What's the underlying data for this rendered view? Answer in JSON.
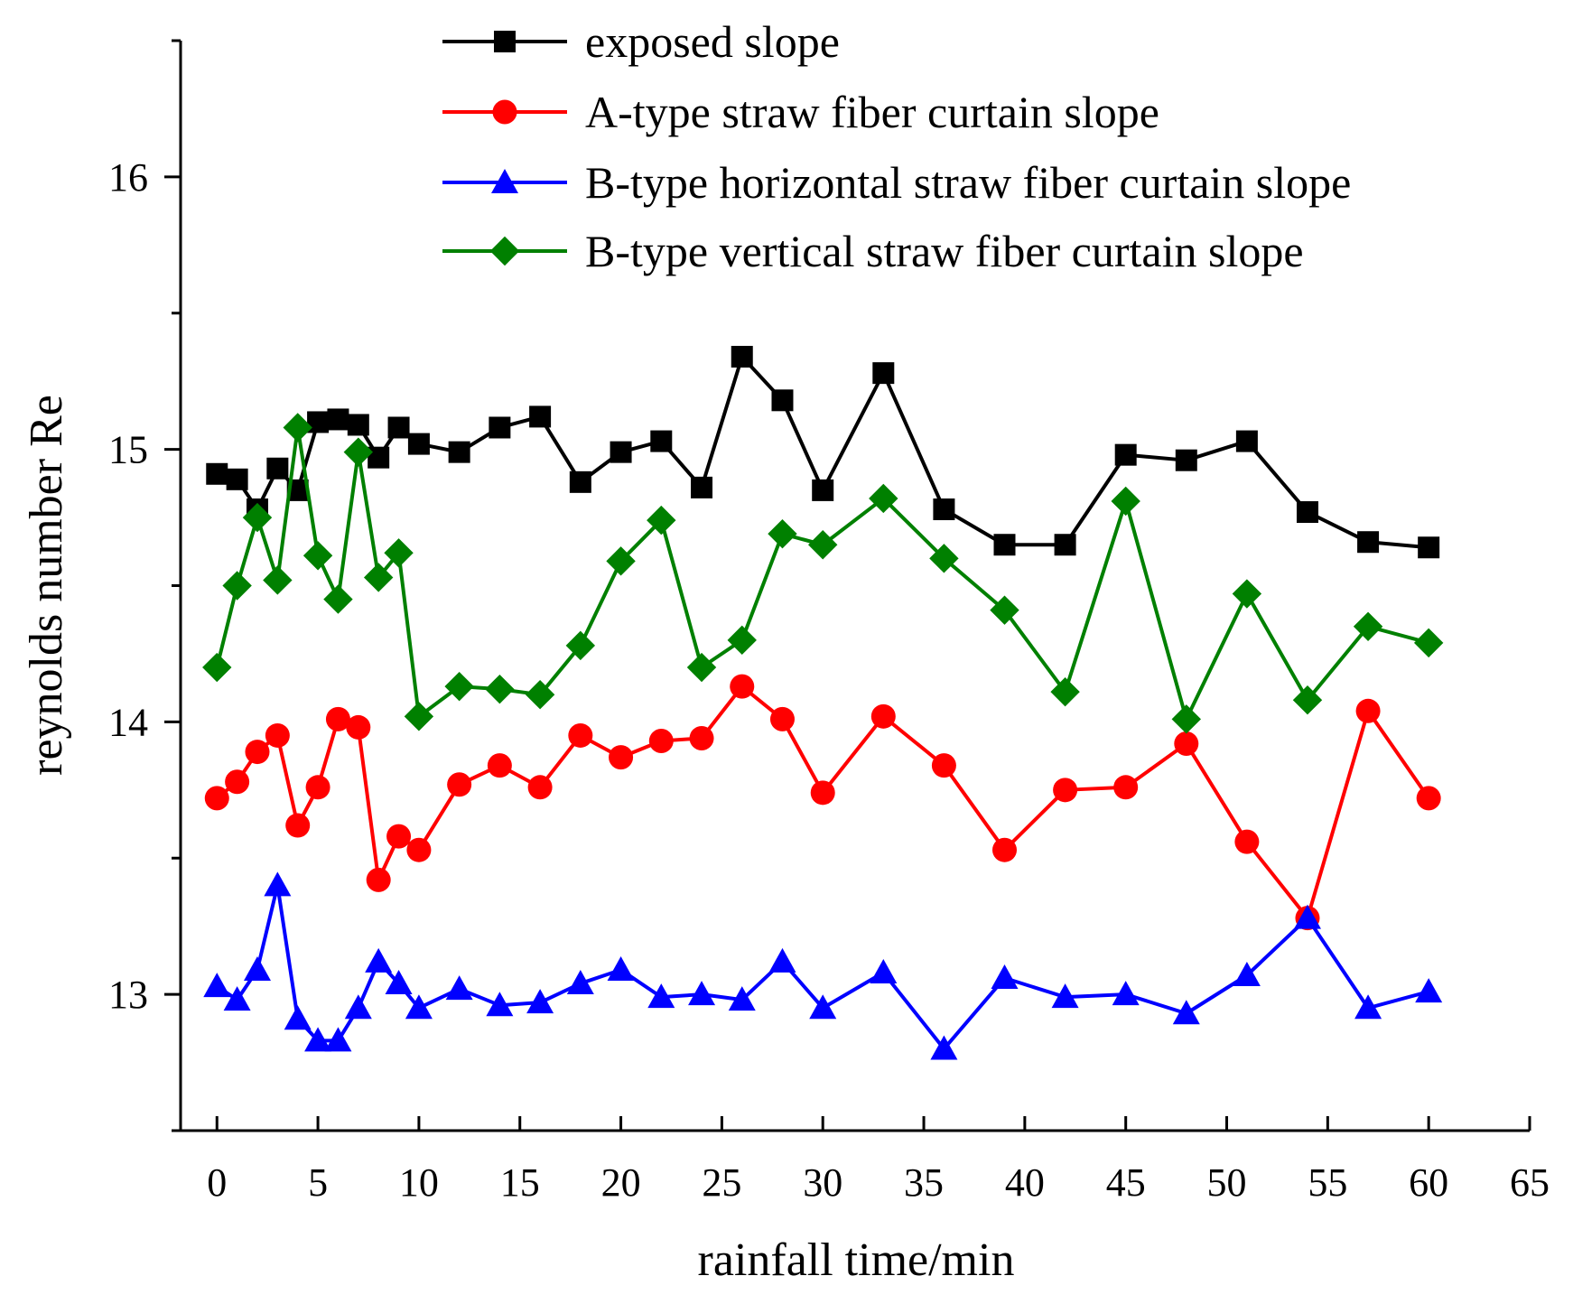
{
  "chart_data": {
    "type": "line",
    "title": "",
    "xlabel": "rainfall time/min",
    "ylabel": "reynolds number Re",
    "xlim": [
      -1.8,
      65
    ],
    "ylim": [
      12.5,
      16.5
    ],
    "xticks": [
      0,
      5,
      10,
      15,
      20,
      25,
      30,
      35,
      40,
      45,
      50,
      55,
      60,
      65
    ],
    "yticks": [
      13,
      14,
      15,
      16
    ],
    "yminor": [
      12.5,
      13.5,
      14.5,
      15.5,
      16.5
    ],
    "legend_position": "top-right",
    "x": [
      0,
      1,
      2,
      3,
      4,
      5,
      6,
      7,
      8,
      9,
      10,
      12,
      14,
      16,
      18,
      20,
      22,
      24,
      26,
      28,
      30,
      33,
      36,
      39,
      42,
      45,
      48,
      51,
      54,
      57,
      60
    ],
    "series": [
      {
        "name": "exposed slope",
        "color": "#000000",
        "marker": "square",
        "values": [
          14.91,
          14.89,
          14.78,
          14.93,
          14.85,
          15.1,
          15.11,
          15.09,
          14.97,
          15.08,
          15.02,
          14.99,
          15.08,
          15.12,
          14.88,
          14.99,
          15.03,
          14.86,
          15.34,
          15.18,
          14.85,
          15.28,
          14.78,
          14.65,
          14.65,
          14.98,
          14.96,
          15.03,
          14.77,
          14.66,
          14.64
        ]
      },
      {
        "name": "A-type straw fiber curtain slope",
        "color": "#ff0000",
        "marker": "circle",
        "values": [
          13.72,
          13.78,
          13.89,
          13.95,
          13.62,
          13.76,
          14.01,
          13.98,
          13.42,
          13.58,
          13.53,
          13.77,
          13.84,
          13.76,
          13.95,
          13.87,
          13.93,
          13.94,
          14.13,
          14.01,
          13.74,
          14.02,
          13.84,
          13.53,
          13.75,
          13.76,
          13.92,
          13.56,
          13.28,
          14.04,
          13.72
        ]
      },
      {
        "name": "B-type horizontal straw fiber curtain slope",
        "color": "#0000ff",
        "marker": "triangle",
        "values": [
          13.03,
          12.98,
          13.09,
          13.4,
          12.91,
          12.83,
          12.83,
          12.95,
          13.12,
          13.04,
          12.95,
          13.02,
          12.96,
          12.97,
          13.04,
          13.09,
          12.99,
          13.0,
          12.98,
          13.12,
          12.95,
          13.08,
          12.8,
          13.06,
          12.99,
          13.0,
          12.93,
          13.07,
          13.28,
          12.95,
          13.01
        ]
      },
      {
        "name": "B-type vertical straw fiber curtain slope",
        "color": "#008000",
        "marker": "diamond",
        "values": [
          14.2,
          14.5,
          14.75,
          14.52,
          15.08,
          14.61,
          14.45,
          14.99,
          14.53,
          14.62,
          14.02,
          14.13,
          14.12,
          14.1,
          14.28,
          14.59,
          14.74,
          14.2,
          14.3,
          14.69,
          14.65,
          14.82,
          14.6,
          14.41,
          14.11,
          14.81,
          14.01,
          14.47,
          14.08,
          14.35,
          14.29
        ]
      }
    ]
  }
}
